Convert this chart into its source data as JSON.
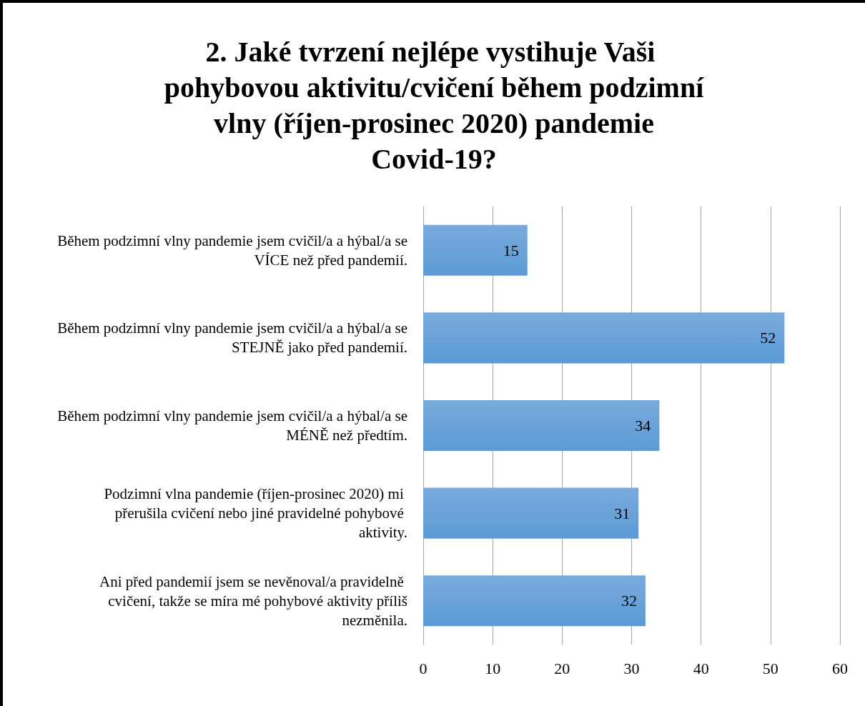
{
  "chart_data": {
    "type": "bar",
    "orientation": "horizontal",
    "title": "2. Jaké tvrzení nejlépe vystihuje Vaši pohybovou aktivitu/cvičení během podzimní vlny (říjen-prosinec 2020) pandemie Covid-19?",
    "categories": [
      "Během podzimní vlny pandemie jsem cvičil/a a hýbal/a se VÍCE než před pandemií.",
      "Během podzimní vlny pandemie jsem cvičil/a a hýbal/a se STEJNĚ jako před pandemií.",
      "Během podzimní vlny pandemie jsem cvičil/a a hýbal/a se MÉNĚ než předtím.",
      "Podzimní vlna pandemie (říjen-prosinec 2020) mi přerušila cvičení nebo jiné pravidelné pohybové aktivity.",
      "Ani před pandemií jsem se nevěnoval/a pravidelně cvičení, takže se míra mé pohybové aktivity příliš nezměnila."
    ],
    "values": [
      15,
      52,
      34,
      31,
      32
    ],
    "color": "#5b9bd5",
    "xlim": [
      0,
      60
    ],
    "xticks": [
      0,
      10,
      20,
      30,
      40,
      50,
      60
    ],
    "grid": "x",
    "data_labels": true
  }
}
